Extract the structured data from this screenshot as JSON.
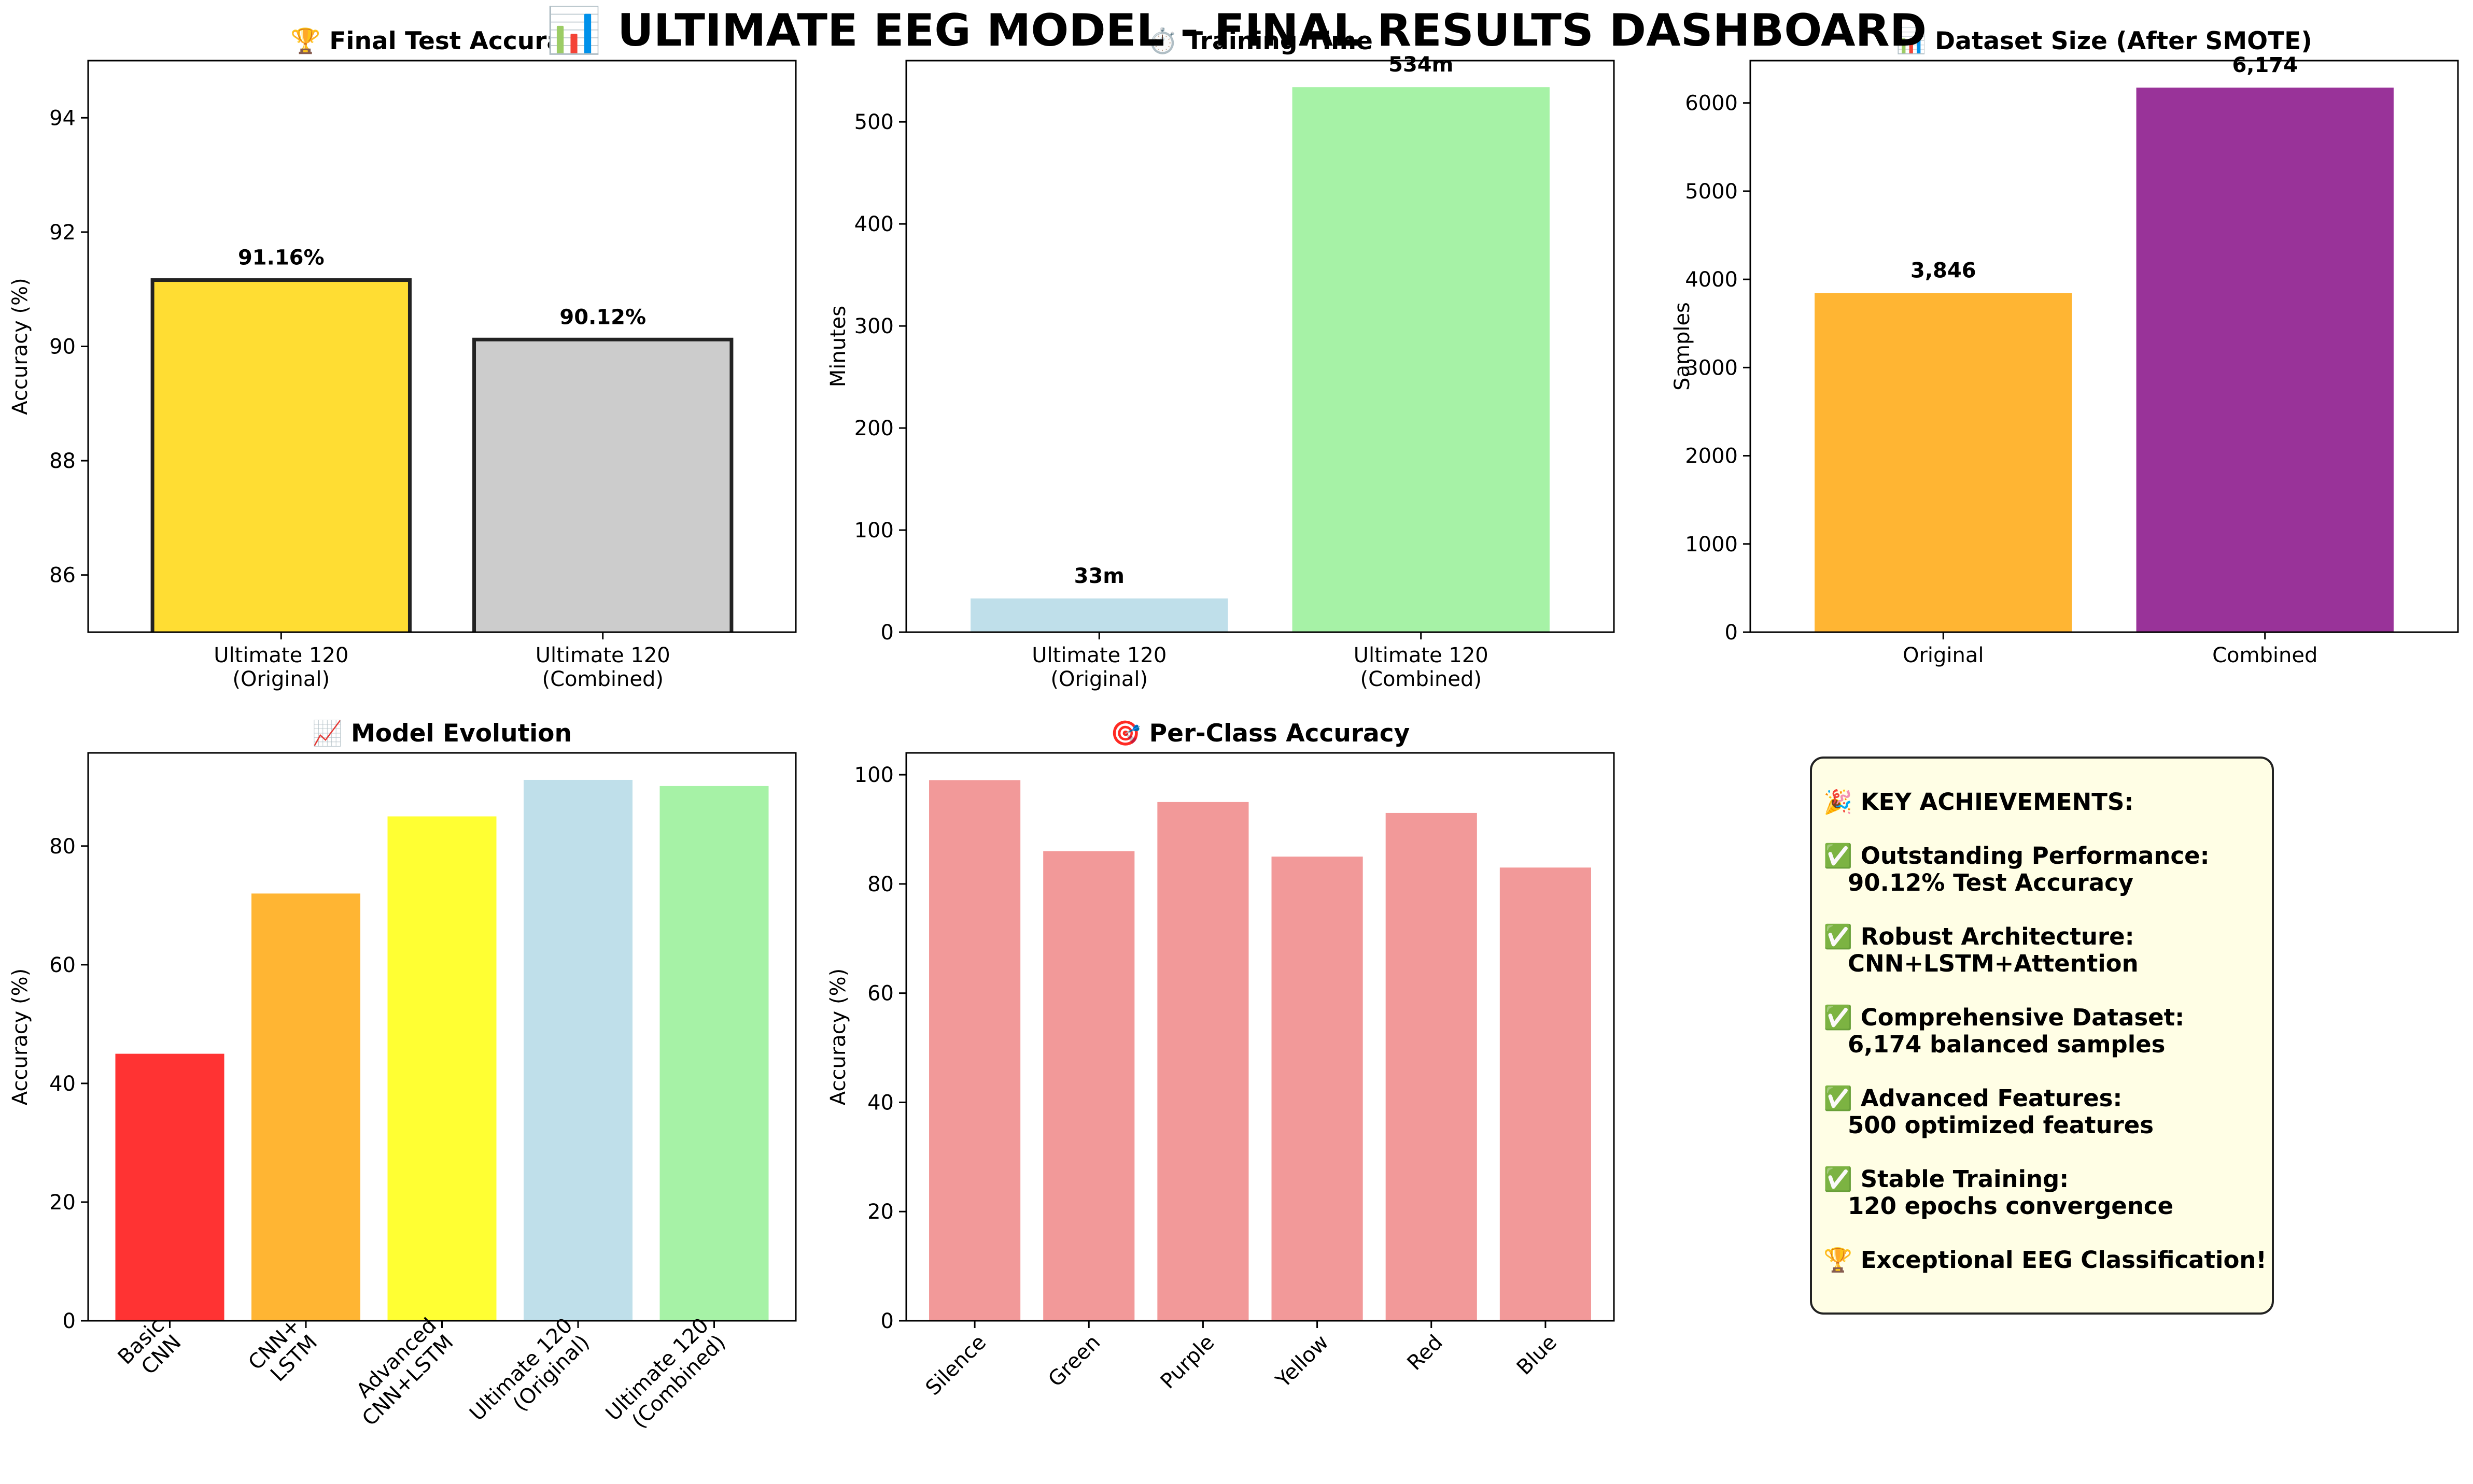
{
  "dashboard": {
    "title": "📊 ULTIMATE EEG MODEL - FINAL RESULTS DASHBOARD"
  },
  "chart_data": [
    {
      "id": "final-test-accuracy",
      "type": "bar",
      "title": "🏆 Final Test Accuracy",
      "xlabel": "",
      "ylabel": "Accuracy (%)",
      "categories": [
        "Ultimate 120\n(Original)",
        "Ultimate 120\n(Combined)"
      ],
      "values": [
        91.16,
        90.12
      ],
      "data_labels": [
        "91.16%",
        "90.12%"
      ],
      "colors": [
        "#ffdd33",
        "#cccccc"
      ],
      "edge_color": "#222222",
      "ylim": [
        85,
        95
      ],
      "yticks": [
        86,
        88,
        90,
        92,
        94
      ],
      "grid": false,
      "legend": "none"
    },
    {
      "id": "training-time",
      "type": "bar",
      "title": "⏱️ Training Time",
      "xlabel": "",
      "ylabel": "Minutes",
      "categories": [
        "Ultimate 120\n(Original)",
        "Ultimate 120\n(Combined)"
      ],
      "values": [
        33,
        534
      ],
      "data_labels": [
        "33m",
        "534m"
      ],
      "colors": [
        "#bfdfea",
        "#a6f2a6"
      ],
      "ylim": [
        0,
        560
      ],
      "yticks": [
        0,
        100,
        200,
        300,
        400,
        500
      ],
      "grid": false,
      "legend": "none"
    },
    {
      "id": "dataset-size",
      "type": "bar",
      "title": "📊 Dataset Size (After SMOTE)",
      "xlabel": "",
      "ylabel": "Samples",
      "categories": [
        "Original",
        "Combined"
      ],
      "values": [
        3846,
        6174
      ],
      "data_labels": [
        "3,846",
        "6,174"
      ],
      "colors": [
        "#ffb533",
        "#993399"
      ],
      "ylim": [
        0,
        6480
      ],
      "yticks": [
        0,
        1000,
        2000,
        3000,
        4000,
        5000,
        6000
      ],
      "grid": false,
      "legend": "none"
    },
    {
      "id": "model-evolution",
      "type": "bar",
      "title": "📈 Model Evolution",
      "xlabel": "",
      "ylabel": "Accuracy (%)",
      "categories": [
        "Basic\nCNN",
        "CNN+\nLSTM",
        "Advanced\nCNN+LSTM",
        "Ultimate 120\n(Original)",
        "Ultimate 120\n(Combined)"
      ],
      "values": [
        45,
        72,
        85,
        91.16,
        90.12
      ],
      "colors": [
        "#ff3333",
        "#ffb533",
        "#ffff33",
        "#bfdfea",
        "#a6f2a6"
      ],
      "ylim": [
        0,
        95.7
      ],
      "yticks": [
        0,
        20,
        40,
        60,
        80
      ],
      "rotate_xticks": true,
      "grid": false,
      "legend": "none"
    },
    {
      "id": "per-class-accuracy",
      "type": "bar",
      "title": "🎯 Per-Class Accuracy",
      "xlabel": "",
      "ylabel": "Accuracy (%)",
      "categories": [
        "Silence",
        "Green",
        "Purple",
        "Yellow",
        "Red",
        "Blue"
      ],
      "values": [
        99,
        86,
        95,
        85,
        93,
        83
      ],
      "colors": [
        "#f29999",
        "#f29999",
        "#f29999",
        "#f29999",
        "#f29999",
        "#f29999"
      ],
      "ylim": [
        0,
        104
      ],
      "yticks": [
        0,
        20,
        40,
        60,
        80,
        100
      ],
      "rotate_xticks": true,
      "grid": false,
      "legend": "none"
    }
  ],
  "achievements": {
    "lines": [
      "🎉 KEY ACHIEVEMENTS:",
      "",
      "✅ Outstanding Performance:",
      "   90.12% Test Accuracy",
      "",
      "✅ Robust Architecture:",
      "   CNN+LSTM+Attention",
      "",
      "✅ Comprehensive Dataset:",
      "   6,174 balanced samples",
      "",
      "✅ Advanced Features:",
      "   500 optimized features",
      "",
      "✅ Stable Training:",
      "   120 epochs convergence",
      "",
      "🏆 Exceptional EEG Classification!"
    ]
  }
}
